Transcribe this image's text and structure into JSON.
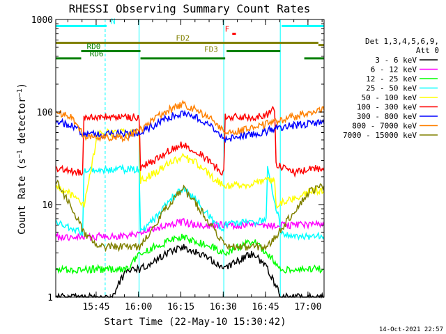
{
  "chart_data": {
    "type": "line",
    "title": "RHESSI Observing Summary Count Rates",
    "xlabel": "Start Time (22-May-10 15:30:42)",
    "ylabel": "Count Rate (s⁻¹ detector⁻¹)",
    "x_unit": "minutes since 15:30:42",
    "xlim": [
      0,
      95
    ],
    "ylim": [
      1,
      1000
    ],
    "y_scale": "log",
    "x_ticks": [
      {
        "x": 14.3,
        "label": "15:45"
      },
      {
        "x": 29.3,
        "label": "16:00"
      },
      {
        "x": 44.3,
        "label": "16:15"
      },
      {
        "x": 59.3,
        "label": "16:30"
      },
      {
        "x": 74.3,
        "label": "16:45"
      },
      {
        "x": 89.3,
        "label": "17:00"
      }
    ],
    "y_ticks": [
      {
        "y": 1,
        "label": "1"
      },
      {
        "y": 10,
        "label": "10"
      },
      {
        "y": 100,
        "label": "100"
      },
      {
        "y": 1000,
        "label": "1000"
      }
    ],
    "grid": false,
    "legend": {
      "position": "right",
      "header": [
        "Det 1,3,4,5,6,9,",
        "Att 0"
      ]
    },
    "series": [
      {
        "name": "3 - 6 keV",
        "color": "#000000",
        "x": [
          0,
          5,
          10,
          15,
          20,
          25,
          30,
          35,
          40,
          45,
          50,
          55,
          60,
          65,
          70,
          75,
          80,
          85,
          90,
          95
        ],
        "values": [
          1,
          1,
          1,
          1,
          1,
          2,
          2,
          2.5,
          3,
          3.5,
          3,
          2.5,
          2,
          2.5,
          3,
          2,
          1,
          1,
          1,
          1
        ]
      },
      {
        "name": "6 - 12 keV",
        "color": "#ff00ff",
        "x": [
          0,
          5,
          10,
          15,
          20,
          25,
          30,
          35,
          40,
          45,
          50,
          55,
          60,
          65,
          70,
          75,
          80,
          85,
          90,
          95
        ],
        "values": [
          4.5,
          4.5,
          4.5,
          4.5,
          4.5,
          4.5,
          5,
          5.5,
          6,
          6.5,
          6,
          6,
          6,
          6,
          6,
          6,
          6,
          6,
          6,
          6
        ]
      },
      {
        "name": "12 - 25 keV",
        "color": "#00ff00",
        "x": [
          0,
          5,
          10,
          15,
          20,
          25,
          30,
          35,
          40,
          45,
          50,
          55,
          60,
          65,
          70,
          75,
          80,
          85,
          90,
          95
        ],
        "values": [
          2,
          2,
          2,
          2,
          2,
          2,
          3,
          3.5,
          4,
          4.5,
          4,
          3.5,
          3,
          3.5,
          4,
          3,
          2,
          2,
          2,
          2
        ]
      },
      {
        "name": "25 - 50 keV",
        "color": "#00ffff",
        "x": [
          0,
          5,
          9.5,
          10,
          15,
          20,
          25,
          29.5,
          30,
          35,
          40,
          45,
          50,
          55,
          59.5,
          60,
          65,
          70,
          74.5,
          75,
          80,
          85,
          90,
          95
        ],
        "values": [
          6.5,
          5.5,
          5,
          24,
          24,
          24,
          24,
          24,
          5,
          7,
          11,
          15,
          11,
          7,
          5,
          6,
          6.5,
          6.5,
          7,
          24,
          5,
          4.5,
          4.5,
          4.5
        ]
      },
      {
        "name": "50 - 100 keV",
        "color": "#ffff00",
        "x": [
          0,
          5,
          10,
          15,
          20,
          25,
          29.5,
          30,
          35,
          40,
          45,
          50,
          55,
          60,
          65,
          70,
          75,
          77.5,
          78,
          85,
          90,
          95
        ],
        "values": [
          16,
          13,
          10,
          60,
          60,
          60,
          60,
          18,
          22,
          28,
          33,
          28,
          20,
          16,
          16,
          17,
          18,
          18,
          10,
          12,
          14,
          14
        ]
      },
      {
        "name": "100 - 300 keV",
        "color": "#ff0000",
        "x": [
          0,
          5,
          9.5,
          10,
          15,
          20,
          25,
          29.5,
          30,
          35,
          40,
          45,
          50,
          55,
          59.5,
          60,
          65,
          70,
          75,
          77.5,
          78,
          85,
          90,
          95
        ],
        "values": [
          25,
          23,
          22,
          88,
          88,
          88,
          88,
          88,
          25,
          30,
          38,
          45,
          38,
          28,
          22,
          88,
          88,
          88,
          95,
          108,
          27,
          22,
          24,
          25
        ]
      },
      {
        "name": "300 - 800 keV",
        "color": "#0000ff",
        "x": [
          0,
          5,
          10,
          15,
          20,
          25,
          30,
          35,
          40,
          45,
          50,
          55,
          60,
          65,
          70,
          75,
          77.5,
          80,
          85,
          90,
          95
        ],
        "values": [
          80,
          72,
          58,
          58,
          58,
          58,
          62,
          72,
          88,
          98,
          88,
          72,
          50,
          55,
          58,
          62,
          68,
          68,
          72,
          75,
          75
        ]
      },
      {
        "name": "800 - 7000 keV",
        "color": "#ff8000",
        "x": [
          0,
          5,
          10,
          15,
          20,
          25,
          30,
          35,
          40,
          45,
          50,
          55,
          60,
          65,
          70,
          75,
          77.5,
          80,
          85,
          90,
          95
        ],
        "values": [
          100,
          90,
          55,
          53,
          53,
          53,
          65,
          85,
          105,
          120,
          105,
          85,
          58,
          62,
          68,
          75,
          78,
          82,
          90,
          100,
          105
        ]
      },
      {
        "name": "7000 - 15000 keV",
        "color": "#808000",
        "x": [
          0,
          5,
          10,
          15,
          20,
          25,
          30,
          35,
          40,
          45,
          50,
          55,
          60,
          65,
          70,
          75,
          80,
          85,
          90,
          95
        ],
        "values": [
          18,
          10,
          5,
          3.5,
          3.5,
          3.5,
          3.5,
          6,
          10,
          15,
          10,
          6,
          3.5,
          3.5,
          3.5,
          3.5,
          5.5,
          9,
          14,
          16
        ]
      }
    ],
    "state_bars": [
      {
        "label": "N",
        "color": "#00ffff",
        "y": 850,
        "segments": [
          [
            0,
            18
          ],
          [
            80,
            95
          ]
        ]
      },
      {
        "label": "F",
        "color": "#ff0000",
        "y": 700,
        "segments": [
          [
            62.5,
            63.8
          ]
        ]
      },
      {
        "label": "FD2",
        "color": "#808000",
        "y": 560,
        "segments": [
          [
            0,
            93
          ]
        ]
      },
      {
        "label": "FD3",
        "color": "#808000",
        "y": 530,
        "segments": [
          [
            93,
            95
          ]
        ]
      },
      {
        "label": "RD0",
        "color": "#008000",
        "y": 455,
        "segments": [
          [
            9,
            30
          ],
          [
            60.5,
            79.5
          ]
        ]
      },
      {
        "label": "RD6",
        "color": "#008000",
        "y": 380,
        "segments": [
          [
            0,
            9
          ],
          [
            30,
            60
          ],
          [
            88,
            95
          ]
        ]
      }
    ],
    "vertical_markers": [
      {
        "x": 0,
        "color": "#00ffff",
        "style": "solid"
      },
      {
        "x": 17.5,
        "color": "#00ffff",
        "style": "dashed"
      },
      {
        "x": 29.5,
        "color": "#00ffff",
        "style": "solid"
      },
      {
        "x": 59.5,
        "color": "#00ffff",
        "style": "solid"
      },
      {
        "x": 79.5,
        "color": "#00ffff",
        "style": "solid"
      },
      {
        "x": 95,
        "color": "#00ffff",
        "style": "dashed"
      }
    ],
    "timestamp": "14-Oct-2021 22:57"
  }
}
